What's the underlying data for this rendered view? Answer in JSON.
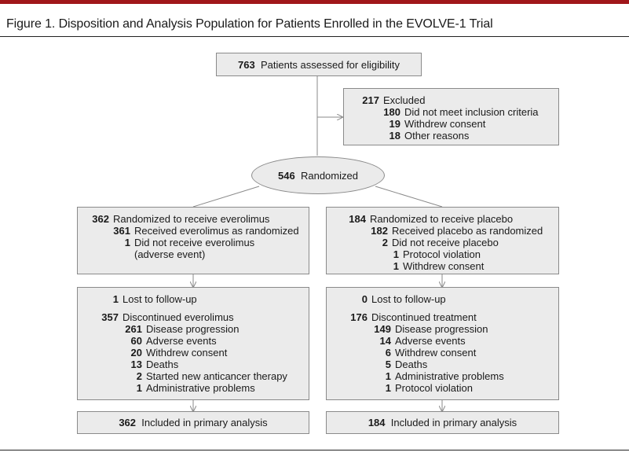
{
  "title": "Figure 1. Disposition and Analysis Population for Patients Enrolled in the EVOLVE-1 Trial",
  "assessed": {
    "n": "763",
    "label": "Patients assessed for eligibility"
  },
  "excluded": {
    "n": "217",
    "label": "Excluded",
    "reasons": [
      {
        "n": "180",
        "label": "Did not meet inclusion criteria"
      },
      {
        "n": "19",
        "label": "Withdrew consent"
      },
      {
        "n": "18",
        "label": "Other reasons"
      }
    ]
  },
  "randomized": {
    "n": "546",
    "label": "Randomized"
  },
  "everolimus_arm": {
    "allocation": {
      "n": "362",
      "label": "Randomized to receive everolimus",
      "received": {
        "n": "361",
        "label": "Received everolimus as randomized"
      },
      "not_received": {
        "n": "1",
        "label": "Did not receive everolimus",
        "label2": "(adverse event)"
      }
    },
    "followup": {
      "lost": {
        "n": "1",
        "label": "Lost to follow-up"
      },
      "discontinued": {
        "n": "357",
        "label": "Discontinued everolimus"
      },
      "reasons": [
        {
          "n": "261",
          "label": "Disease progression"
        },
        {
          "n": "60",
          "label": "Adverse events"
        },
        {
          "n": "20",
          "label": "Withdrew consent"
        },
        {
          "n": "13",
          "label": "Deaths"
        },
        {
          "n": "2",
          "label": "Started new anticancer therapy"
        },
        {
          "n": "1",
          "label": "Administrative problems"
        }
      ]
    },
    "analysis": {
      "n": "362",
      "label": "Included in primary analysis"
    }
  },
  "placebo_arm": {
    "allocation": {
      "n": "184",
      "label": "Randomized to receive placebo",
      "received": {
        "n": "182",
        "label": "Received placebo as randomized"
      },
      "not_received": {
        "n": "2",
        "label": "Did not receive placebo"
      },
      "not_received_reasons": [
        {
          "n": "1",
          "label": "Protocol violation"
        },
        {
          "n": "1",
          "label": "Withdrew consent"
        }
      ]
    },
    "followup": {
      "lost": {
        "n": "0",
        "label": "Lost to follow-up"
      },
      "discontinued": {
        "n": "176",
        "label": "Discontinued treatment"
      },
      "reasons": [
        {
          "n": "149",
          "label": "Disease progression"
        },
        {
          "n": "14",
          "label": "Adverse events"
        },
        {
          "n": "6",
          "label": "Withdrew consent"
        },
        {
          "n": "5",
          "label": "Deaths"
        },
        {
          "n": "1",
          "label": "Administrative problems"
        },
        {
          "n": "1",
          "label": "Protocol violation"
        }
      ]
    },
    "analysis": {
      "n": "184",
      "label": "Included in primary analysis"
    }
  },
  "colors": {
    "box_fill": "#ebebeb",
    "box_border": "#8a8a8a",
    "connector": "#8a8a8a",
    "accent_bar": "#a0161a"
  }
}
